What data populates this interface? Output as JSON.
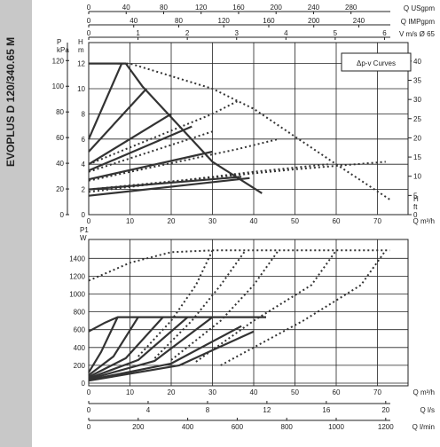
{
  "side_title": "EVOPLUS D 120/340.65 M",
  "legend": "Δp-v Curves",
  "units": {
    "p_kpa": "P\nkPa",
    "h_m": "H\nm",
    "h_ft": "H\nft",
    "q_m3h": "Q m³/h",
    "q_usgpm": "Q USgpm",
    "q_impgpm": "Q IMPgpm",
    "v_ms": "V m/s Ø 65",
    "p1_w": "P1\nW",
    "q_ls": "Q l/s",
    "q_lmin": "Q l/min"
  },
  "chart_data": [
    {
      "type": "line",
      "title": "",
      "legend": "Δp-v Curves",
      "xlabel": "Q m³/h",
      "ylabel": "H m",
      "xlim": [
        0,
        78
      ],
      "ylim": [
        0,
        12.5
      ],
      "x_ticks": [
        "0",
        "10",
        "20",
        "30",
        "40",
        "50",
        "60",
        "70"
      ],
      "y_ticks_h_m": [
        "0",
        "2",
        "4",
        "6",
        "8",
        "10",
        "12"
      ],
      "y_ticks_p_kpa": [
        "0",
        "20",
        "40",
        "60",
        "80",
        "100",
        "120"
      ],
      "y_ticks_h_ft": [
        "0",
        "5",
        "10",
        "15",
        "20",
        "25",
        "30",
        "35",
        "40"
      ],
      "top_axes": [
        {
          "label": "Q USgpm",
          "ticks": [
            "0",
            "40",
            "80",
            "120",
            "160",
            "200",
            "240",
            "280"
          ]
        },
        {
          "label": "Q IMPgpm",
          "ticks": [
            "0",
            "40",
            "80",
            "120",
            "160",
            "200",
            "240"
          ]
        },
        {
          "label": "V m/s Ø 65",
          "ticks": [
            "0",
            "1",
            "2",
            "3",
            "4",
            "5",
            "6"
          ]
        }
      ],
      "max_curve": {
        "x": [
          0,
          7,
          9,
          13,
          30,
          42
        ],
        "y": [
          12,
          12,
          12,
          10.2,
          4.2,
          1.7
        ]
      },
      "setting_lines": [
        {
          "x": [
            0,
            8
          ],
          "y": [
            6,
            12
          ]
        },
        {
          "x": [
            0,
            14
          ],
          "y": [
            5,
            10
          ]
        },
        {
          "x": [
            0,
            20
          ],
          "y": [
            4,
            8
          ]
        },
        {
          "x": [
            0,
            25
          ],
          "y": [
            3.5,
            7
          ]
        },
        {
          "x": [
            0,
            30
          ],
          "y": [
            2.8,
            5
          ]
        },
        {
          "x": [
            0,
            37
          ],
          "y": [
            2,
            3
          ]
        },
        {
          "x": [
            0,
            39
          ],
          "y": [
            1.5,
            2.9
          ]
        }
      ],
      "system_curves_dotted": [
        {
          "x": [
            0,
            30,
            36
          ],
          "y": [
            4,
            8,
            9
          ]
        },
        {
          "x": [
            0,
            30
          ],
          "y": [
            3.4,
            6.6
          ]
        },
        {
          "x": [
            0,
            36,
            46
          ],
          "y": [
            2.7,
            5.2,
            6
          ]
        },
        {
          "x": [
            0,
            40,
            58
          ],
          "y": [
            1.8,
            3.4,
            4
          ]
        },
        {
          "x": [
            0,
            50,
            72
          ],
          "y": [
            2,
            3.6,
            4.2
          ]
        }
      ],
      "max_curve_dotted": {
        "x": [
          7,
          10,
          20,
          30,
          40,
          50,
          60,
          73
        ],
        "y": [
          12,
          12,
          11,
          10,
          8.4,
          6.2,
          4,
          1.2
        ]
      }
    },
    {
      "type": "line",
      "title": "",
      "xlabel": "Q m³/h",
      "ylabel": "P1 W",
      "xlim": [
        0,
        78
      ],
      "ylim": [
        0,
        1550
      ],
      "x_ticks": [
        "0",
        "10",
        "20",
        "30",
        "40",
        "50",
        "60",
        "70"
      ],
      "y_ticks": [
        "0",
        "200",
        "400",
        "600",
        "800",
        "1000",
        "1200",
        "1400"
      ],
      "bottom_axes": [
        {
          "label": "Q l/s",
          "ticks": [
            "0",
            "4",
            "8",
            "12",
            "16",
            "20"
          ]
        },
        {
          "label": "Q l/min",
          "ticks": [
            "0",
            "200",
            "400",
            "600",
            "800",
            "1000",
            "1200"
          ]
        }
      ],
      "max_power_solid": {
        "x": [
          0,
          4,
          7,
          43
        ],
        "y": [
          580,
          680,
          740,
          740
        ]
      },
      "power_curves_solid": [
        {
          "x": [
            0,
            3,
            7
          ],
          "y": [
            120,
            350,
            740
          ]
        },
        {
          "x": [
            0,
            6,
            12
          ],
          "y": [
            90,
            300,
            740
          ]
        },
        {
          "x": [
            0,
            9,
            18
          ],
          "y": [
            70,
            280,
            740
          ]
        },
        {
          "x": [
            0,
            12,
            24
          ],
          "y": [
            55,
            260,
            740
          ]
        },
        {
          "x": [
            0,
            16,
            30
          ],
          "y": [
            45,
            250,
            740
          ]
        },
        {
          "x": [
            0,
            20,
            37
          ],
          "y": [
            35,
            220,
            640
          ]
        },
        {
          "x": [
            0,
            22,
            40
          ],
          "y": [
            28,
            200,
            580
          ]
        }
      ],
      "power_curves_dotted": [
        {
          "x": [
            0,
            5,
            10,
            20,
            30,
            40,
            60,
            73
          ],
          "y": [
            1150,
            1250,
            1350,
            1470,
            1490,
            1490,
            1490,
            1490
          ]
        },
        {
          "x": [
            12,
            20,
            26,
            30
          ],
          "y": [
            300,
            700,
            1100,
            1490
          ]
        },
        {
          "x": [
            16,
            25,
            32,
            38
          ],
          "y": [
            280,
            700,
            1100,
            1490
          ]
        },
        {
          "x": [
            20,
            32,
            40,
            46
          ],
          "y": [
            260,
            700,
            1100,
            1490
          ]
        },
        {
          "x": [
            26,
            40,
            54,
            60
          ],
          "y": [
            240,
            700,
            1100,
            1490
          ]
        },
        {
          "x": [
            32,
            52,
            66,
            72
          ],
          "y": [
            200,
            700,
            1100,
            1490
          ]
        }
      ]
    }
  ]
}
